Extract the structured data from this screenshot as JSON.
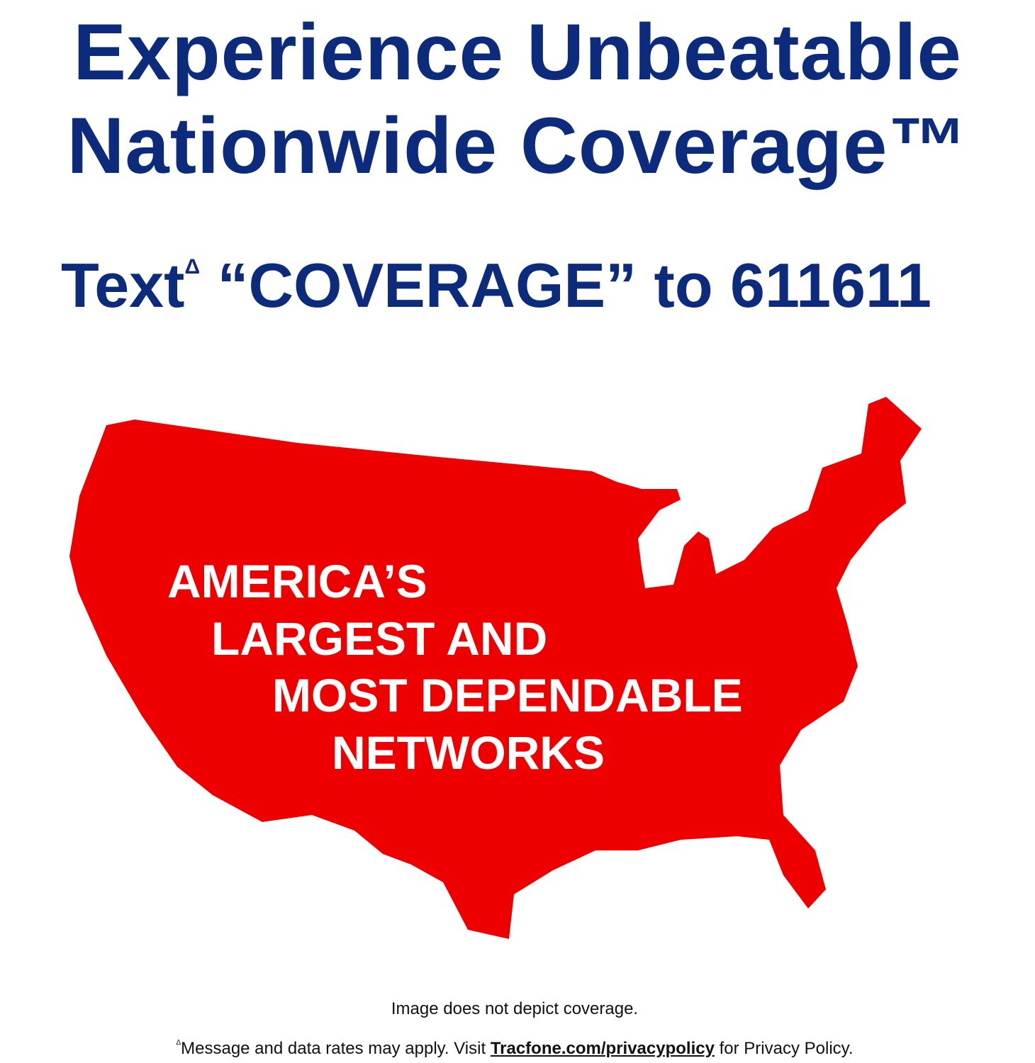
{
  "headline": {
    "line1": "Experience Unbeatable",
    "line2": "Nationwide Coverage™"
  },
  "subheadline": {
    "prefix": "Text",
    "marker": "Δ",
    "rest": " “COVERAGE” to 611611"
  },
  "map": {
    "icon": "us-map-silhouette",
    "fill_color": "#ee0000",
    "lines": [
      "AMERICA’S",
      "LARGEST AND",
      "MOST DEPENDABLE",
      "NETWORKS"
    ]
  },
  "footer": {
    "disclaimer": "Image does not depict coverage.",
    "marker": "Δ",
    "rates_prefix": "Message and data rates may apply. Visit ",
    "link": "Tracfone.com/privacypolicy",
    "rates_suffix": " for Privacy Policy."
  },
  "colors": {
    "navy": "#0d2b7c",
    "red": "#ee0000"
  }
}
